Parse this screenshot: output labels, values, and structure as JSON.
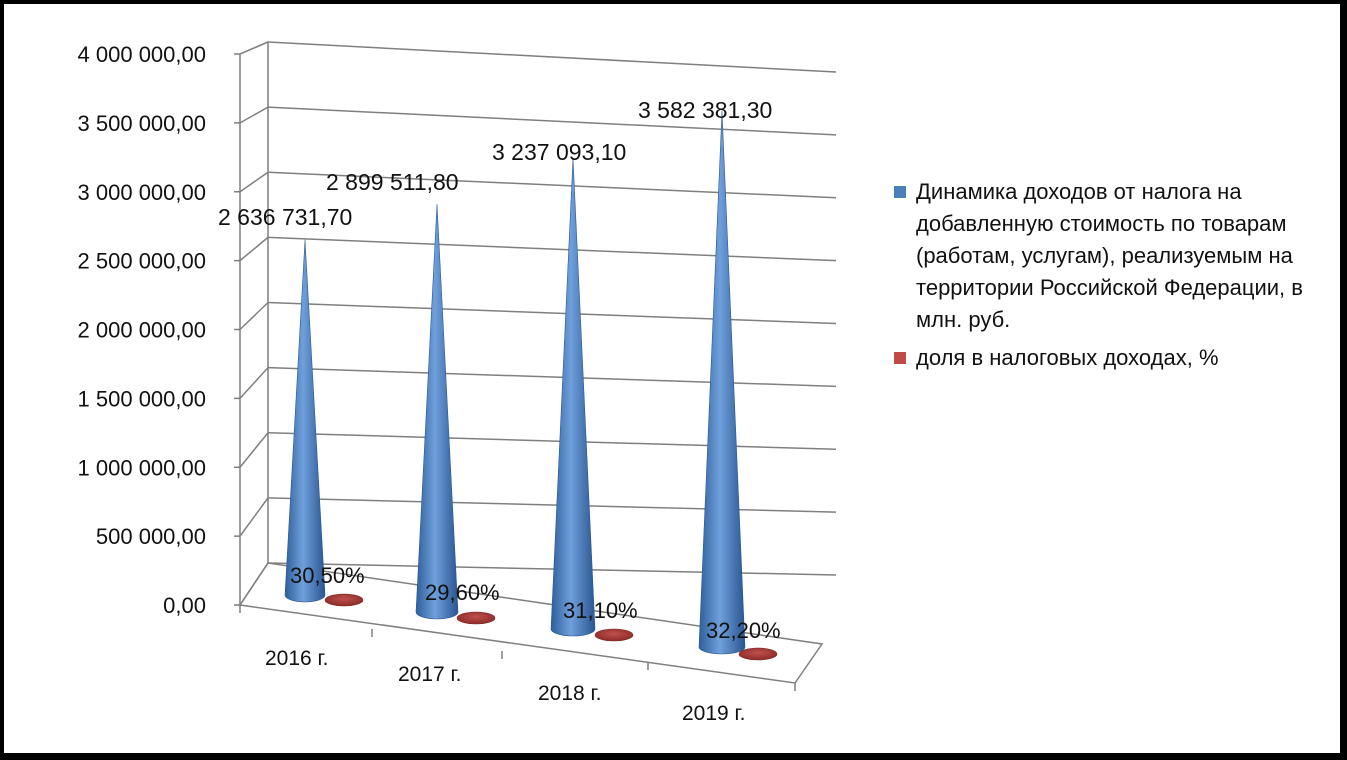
{
  "chart_data": {
    "type": "bar",
    "bar_shape": "3d-cone",
    "categories": [
      "2016 г.",
      "2017 г.",
      "2018 г.",
      "2019 г."
    ],
    "ylim": [
      0,
      4000000
    ],
    "ytick_values": [
      0,
      500000,
      1000000,
      1500000,
      2000000,
      2500000,
      3000000,
      3500000,
      4000000
    ],
    "yticks": [
      "0,00",
      "500 000,00",
      "1 000 000,00",
      "1 500 000,00",
      "2 000 000,00",
      "2 500 000,00",
      "3 000 000,00",
      "3 500 000,00",
      "4 000 000,00"
    ],
    "grid": true,
    "legend_position": "right",
    "series": [
      {
        "name": "Динамика доходов от налога на добавленную стоимость по товарам (работам, услугам), реализуемым на территории Российской Федерации, в млн. руб.",
        "values": [
          2636731.7,
          2899511.8,
          3237093.1,
          3582381.3
        ],
        "labels": [
          "2 636 731,70",
          "2 899 511,80",
          "3 237 093,10",
          "3 582 381,30"
        ],
        "color": "#4a7ebb"
      },
      {
        "name": "доля в налоговых доходах, %",
        "values": [
          30.5,
          29.6,
          31.1,
          32.2
        ],
        "labels": [
          "30,50%",
          "29,60%",
          "31,10%",
          "32,20%"
        ],
        "color": "#be4b48"
      }
    ]
  }
}
